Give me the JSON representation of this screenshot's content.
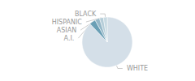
{
  "chart_data": {
    "type": "pie",
    "categories": [
      "WHITE",
      "A.I.",
      "ASIAN",
      "HISPANIC",
      "BLACK"
    ],
    "values": [
      88,
      4,
      3,
      2.5,
      2.5
    ],
    "colors": [
      "#d4dfe8",
      "#6a9fb5",
      "#96b8c8",
      "#b5cdd8",
      "#c8dae2"
    ]
  }
}
